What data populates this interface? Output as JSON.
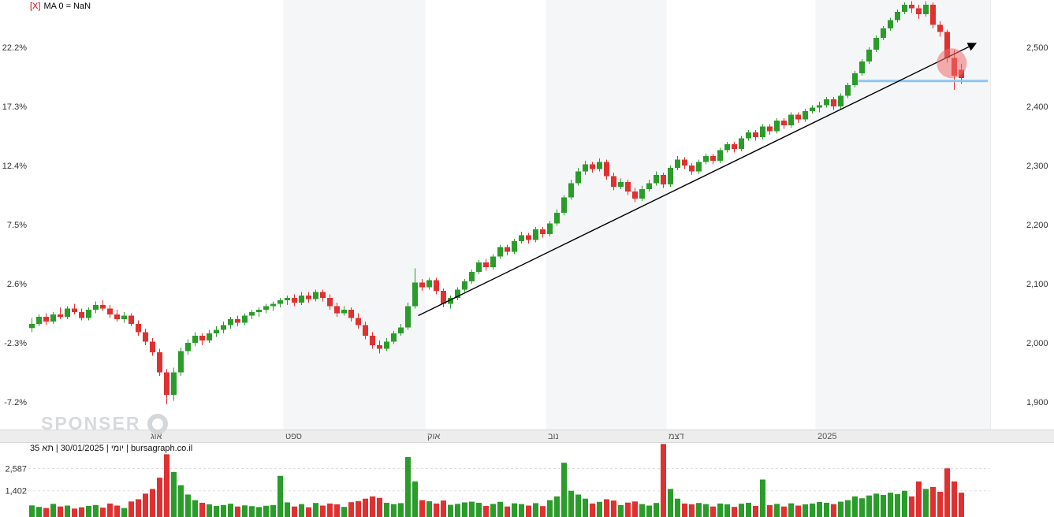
{
  "indicator": {
    "close_label": "[X]",
    "label": "MA 0 = NaN"
  },
  "status_line": "יומי | 30/01/2025 | תא 35 | bursagraph.co.il",
  "watermark": {
    "text": "SPONSER"
  },
  "colors": {
    "up": "#2a9c2a",
    "down": "#e03030",
    "band": "#f5f6f7",
    "strip_bg": "#ededed",
    "strip_border": "#d8d8d8",
    "axis_text": "#333333",
    "month_text": "#555555",
    "grid_dashed": "#dfdfdf",
    "trendline": "#000000",
    "support_line": "#8ec7f0",
    "highlight": "#ee6c6c",
    "indicator_close": "#cc0000",
    "watermark": "#d7dadd"
  },
  "chart_data": {
    "type": "candlestick",
    "title": "",
    "symbol": "תא 35",
    "interval_label": "יומי",
    "last_date": "30/01/2025",
    "source": "bursagraph.co.il",
    "price_axis": {
      "ticks": [
        2500,
        2400,
        2300,
        2200,
        2100,
        2000,
        1900
      ],
      "labels": [
        "2,500",
        "2,400",
        "2,300",
        "2,200",
        "2,100",
        "2,000",
        "1,900"
      ],
      "percent_labels": [
        "22.2%",
        "17.3%",
        "12.4%",
        "7.5%",
        "2.6%",
        "-2.3%",
        "-7.2%"
      ],
      "range": [
        1853,
        2580
      ]
    },
    "volume_axis": {
      "ticks": [
        2587,
        1402
      ],
      "labels": [
        "2,587",
        "1,402"
      ],
      "scale_max": 4000
    },
    "months": [
      {
        "label": "אוג",
        "start_index": 17
      },
      {
        "label": "ספט",
        "start_index": 36
      },
      {
        "label": "אוק",
        "start_index": 56
      },
      {
        "label": "נוב",
        "start_index": 73
      },
      {
        "label": "דצמ",
        "start_index": 90
      },
      {
        "label": "2025",
        "start_index": 111
      }
    ],
    "candles": [
      [
        2025,
        2042,
        2018,
        2032,
        620
      ],
      [
        2032,
        2048,
        2028,
        2044,
        540
      ],
      [
        2044,
        2050,
        2030,
        2036,
        480
      ],
      [
        2036,
        2052,
        2032,
        2048,
        700
      ],
      [
        2048,
        2060,
        2040,
        2044,
        560
      ],
      [
        2044,
        2062,
        2040,
        2058,
        610
      ],
      [
        2058,
        2066,
        2048,
        2052,
        450
      ],
      [
        2052,
        2058,
        2038,
        2042,
        520
      ],
      [
        2042,
        2060,
        2038,
        2056,
        590
      ],
      [
        2056,
        2070,
        2050,
        2064,
        640
      ],
      [
        2064,
        2072,
        2054,
        2058,
        500
      ],
      [
        2058,
        2064,
        2042,
        2048,
        720
      ],
      [
        2048,
        2056,
        2036,
        2040,
        610
      ],
      [
        2040,
        2052,
        2034,
        2046,
        480
      ],
      [
        2046,
        2050,
        2028,
        2032,
        830
      ],
      [
        2032,
        2038,
        2012,
        2018,
        950
      ],
      [
        2018,
        2024,
        1996,
        2002,
        1250
      ],
      [
        2002,
        2008,
        1978,
        1984,
        1500
      ],
      [
        1984,
        1990,
        1944,
        1950,
        2100
      ],
      [
        1950,
        1956,
        1896,
        1912,
        3350
      ],
      [
        1912,
        1958,
        1902,
        1950,
        2400
      ],
      [
        1950,
        1992,
        1944,
        1986,
        1700
      ],
      [
        1986,
        2006,
        1980,
        2000,
        1200
      ],
      [
        2000,
        2018,
        1994,
        2012,
        900
      ],
      [
        2012,
        2016,
        1996,
        2004,
        760
      ],
      [
        2004,
        2022,
        2000,
        2016,
        680
      ],
      [
        2016,
        2028,
        2010,
        2022,
        590
      ],
      [
        2022,
        2036,
        2016,
        2030,
        640
      ],
      [
        2030,
        2044,
        2024,
        2040,
        710
      ],
      [
        2040,
        2046,
        2028,
        2034,
        560
      ],
      [
        2034,
        2050,
        2030,
        2046,
        620
      ],
      [
        2046,
        2056,
        2040,
        2052,
        580
      ],
      [
        2052,
        2060,
        2044,
        2056,
        530
      ],
      [
        2056,
        2066,
        2050,
        2062,
        600
      ],
      [
        2062,
        2070,
        2054,
        2066,
        640
      ],
      [
        2066,
        2076,
        2060,
        2072,
        2200
      ],
      [
        2072,
        2080,
        2064,
        2076,
        780
      ],
      [
        2076,
        2082,
        2062,
        2068,
        560
      ],
      [
        2068,
        2086,
        2064,
        2080,
        690
      ],
      [
        2080,
        2086,
        2068,
        2074,
        520
      ],
      [
        2074,
        2090,
        2070,
        2086,
        750
      ],
      [
        2086,
        2090,
        2070,
        2076,
        610
      ],
      [
        2076,
        2082,
        2056,
        2062,
        720
      ],
      [
        2062,
        2068,
        2044,
        2050,
        680
      ],
      [
        2050,
        2062,
        2046,
        2056,
        540
      ],
      [
        2056,
        2060,
        2036,
        2042,
        790
      ],
      [
        2042,
        2050,
        2024,
        2030,
        850
      ],
      [
        2030,
        2036,
        2006,
        2012,
        980
      ],
      [
        2012,
        2018,
        1990,
        1996,
        1100
      ],
      [
        1996,
        2004,
        1982,
        1990,
        1020
      ],
      [
        1990,
        2008,
        1986,
        2002,
        760
      ],
      [
        2002,
        2020,
        1998,
        2016,
        690
      ],
      [
        2016,
        2032,
        2012,
        2026,
        740
      ],
      [
        2026,
        2068,
        2022,
        2062,
        3200
      ],
      [
        2062,
        2126,
        2058,
        2102,
        1900
      ],
      [
        2102,
        2108,
        2088,
        2094,
        900
      ],
      [
        2094,
        2110,
        2090,
        2106,
        840
      ],
      [
        2106,
        2110,
        2082,
        2088,
        720
      ],
      [
        2088,
        2092,
        2060,
        2066,
        880
      ],
      [
        2066,
        2080,
        2058,
        2076,
        650
      ],
      [
        2076,
        2094,
        2072,
        2090,
        700
      ],
      [
        2090,
        2108,
        2086,
        2104,
        780
      ],
      [
        2104,
        2124,
        2100,
        2120,
        820
      ],
      [
        2120,
        2140,
        2116,
        2136,
        760
      ],
      [
        2136,
        2142,
        2122,
        2128,
        590
      ],
      [
        2128,
        2150,
        2124,
        2146,
        700
      ],
      [
        2146,
        2166,
        2142,
        2162,
        810
      ],
      [
        2162,
        2166,
        2148,
        2154,
        560
      ],
      [
        2154,
        2176,
        2150,
        2172,
        730
      ],
      [
        2172,
        2188,
        2168,
        2182,
        690
      ],
      [
        2182,
        2186,
        2168,
        2174,
        610
      ],
      [
        2174,
        2196,
        2170,
        2192,
        740
      ],
      [
        2192,
        2196,
        2178,
        2184,
        580
      ],
      [
        2184,
        2206,
        2180,
        2202,
        900
      ],
      [
        2202,
        2226,
        2198,
        2220,
        1100
      ],
      [
        2220,
        2250,
        2216,
        2246,
        2900
      ],
      [
        2246,
        2276,
        2242,
        2270,
        1400
      ],
      [
        2270,
        2296,
        2266,
        2290,
        1200
      ],
      [
        2290,
        2308,
        2284,
        2302,
        980
      ],
      [
        2302,
        2306,
        2288,
        2294,
        720
      ],
      [
        2294,
        2312,
        2290,
        2306,
        810
      ],
      [
        2306,
        2310,
        2276,
        2282,
        950
      ],
      [
        2282,
        2288,
        2258,
        2264,
        880
      ],
      [
        2264,
        2278,
        2260,
        2272,
        640
      ],
      [
        2272,
        2276,
        2250,
        2256,
        770
      ],
      [
        2256,
        2262,
        2238,
        2244,
        830
      ],
      [
        2244,
        2266,
        2240,
        2260,
        690
      ],
      [
        2260,
        2276,
        2256,
        2270,
        610
      ],
      [
        2270,
        2290,
        2266,
        2284,
        750
      ],
      [
        2284,
        2288,
        2262,
        2268,
        3900
      ],
      [
        2268,
        2300,
        2264,
        2296,
        1500
      ],
      [
        2296,
        2316,
        2292,
        2310,
        980
      ],
      [
        2310,
        2314,
        2294,
        2300,
        720
      ],
      [
        2300,
        2304,
        2284,
        2290,
        680
      ],
      [
        2290,
        2310,
        2286,
        2306,
        750
      ],
      [
        2306,
        2320,
        2302,
        2316,
        690
      ],
      [
        2316,
        2320,
        2302,
        2308,
        560
      ],
      [
        2308,
        2330,
        2304,
        2326,
        720
      ],
      [
        2326,
        2340,
        2322,
        2336,
        680
      ],
      [
        2336,
        2340,
        2322,
        2328,
        540
      ],
      [
        2328,
        2350,
        2324,
        2346,
        710
      ],
      [
        2346,
        2360,
        2342,
        2356,
        760
      ],
      [
        2356,
        2360,
        2342,
        2348,
        590
      ],
      [
        2348,
        2370,
        2344,
        2366,
        2000
      ],
      [
        2366,
        2370,
        2352,
        2358,
        640
      ],
      [
        2358,
        2380,
        2354,
        2376,
        700
      ],
      [
        2376,
        2380,
        2362,
        2368,
        560
      ],
      [
        2368,
        2390,
        2364,
        2386,
        730
      ],
      [
        2386,
        2390,
        2372,
        2378,
        610
      ],
      [
        2378,
        2396,
        2374,
        2392,
        680
      ],
      [
        2392,
        2402,
        2388,
        2398,
        720
      ],
      [
        2398,
        2408,
        2390,
        2402,
        800
      ],
      [
        2402,
        2416,
        2398,
        2412,
        760
      ],
      [
        2412,
        2416,
        2394,
        2400,
        690
      ],
      [
        2400,
        2422,
        2396,
        2418,
        820
      ],
      [
        2418,
        2440,
        2414,
        2436,
        900
      ],
      [
        2436,
        2460,
        2432,
        2456,
        1100
      ],
      [
        2456,
        2480,
        2452,
        2476,
        1000
      ],
      [
        2476,
        2500,
        2472,
        2496,
        1150
      ],
      [
        2496,
        2520,
        2492,
        2516,
        1250
      ],
      [
        2516,
        2536,
        2512,
        2532,
        1180
      ],
      [
        2532,
        2550,
        2528,
        2546,
        1300
      ],
      [
        2546,
        2564,
        2542,
        2560,
        1220
      ],
      [
        2560,
        2576,
        2556,
        2572,
        1400
      ],
      [
        2572,
        2578,
        2558,
        2566,
        1100
      ],
      [
        2566,
        2572,
        2548,
        2556,
        1900
      ],
      [
        2556,
        2578,
        2552,
        2572,
        1500
      ],
      [
        2572,
        2576,
        2532,
        2538,
        1600
      ],
      [
        2538,
        2544,
        2518,
        2526,
        1350
      ],
      [
        2526,
        2530,
        2474,
        2482,
        2600
      ],
      [
        2482,
        2496,
        2428,
        2452,
        1900
      ],
      [
        2462,
        2472,
        2438,
        2448,
        1300
      ]
    ],
    "annotations": {
      "trendline": {
        "from_index": 54.5,
        "from_price": 2046,
        "to_index": 133,
        "to_price": 2506
      },
      "support_line": {
        "from_index": 116.5,
        "to_index": 134.8,
        "price": 2443
      },
      "highlight_circle": {
        "index": 129.7,
        "price": 2473,
        "radius_px": 19
      }
    }
  }
}
